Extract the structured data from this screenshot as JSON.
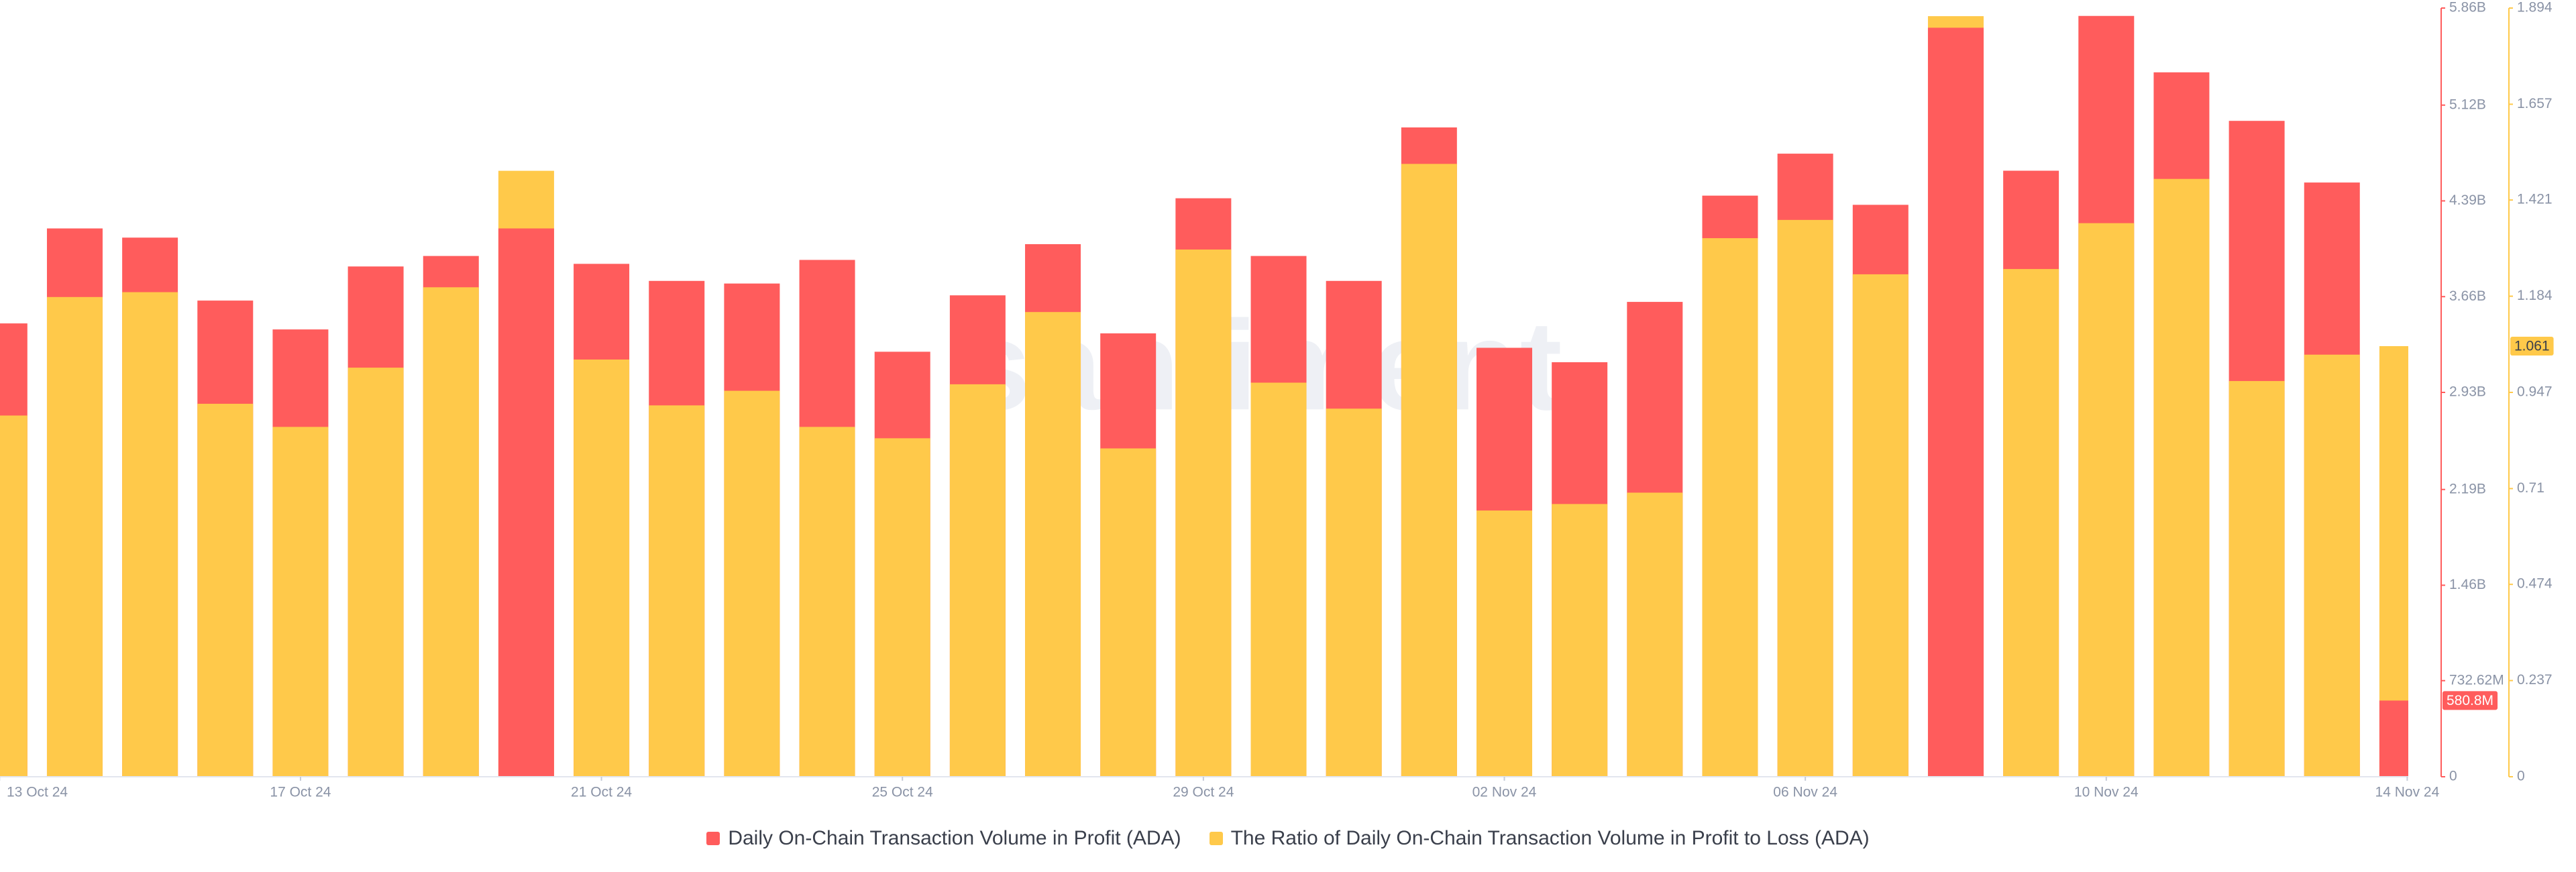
{
  "chart_data": {
    "type": "bar",
    "watermark": "santiment",
    "categories": [
      "13 Oct 24",
      null,
      null,
      null,
      "17 Oct 24",
      null,
      null,
      null,
      "21 Oct 24",
      null,
      null,
      null,
      "25 Oct 24",
      null,
      null,
      null,
      "29 Oct 24",
      null,
      null,
      null,
      "02 Nov 24",
      null,
      null,
      null,
      "06 Nov 24",
      null,
      null,
      null,
      "10 Nov 24",
      null,
      null,
      null,
      "14 Nov 24"
    ],
    "series": [
      {
        "name": "Daily On-Chain Transaction Volume in Profit (ADA)",
        "color": "#ff5c5c",
        "values": [
          3456000000,
          4180000000,
          4110000000,
          3630000000,
          3410000000,
          3890000000,
          3970000000,
          4180000000,
          3910000000,
          3780000000,
          3760000000,
          3940000000,
          3240000000,
          3670000000,
          4060000000,
          3380000000,
          4410000000,
          3970000000,
          3780000000,
          4950000000,
          3270000000,
          3160000000,
          3620000000,
          4430000000,
          4750000000,
          4360000000,
          5710000000,
          4620000000,
          5800000000,
          5370000000,
          5000000000,
          4530000000,
          580800000
        ],
        "value_labels": [
          null,
          null,
          null,
          null,
          null,
          null,
          null,
          null,
          null,
          null,
          null,
          null,
          null,
          null,
          null,
          null,
          null,
          null,
          null,
          null,
          null,
          null,
          null,
          null,
          null,
          null,
          null,
          null,
          null,
          null,
          null,
          null,
          "580.8M"
        ]
      },
      {
        "name": "The Ratio of Daily On-Chain Transaction Volume in Profit to Loss (ADA)",
        "color": "#ffc94a",
        "axis": "y2",
        "values": [
          0.89,
          1.182,
          1.194,
          0.919,
          0.862,
          1.008,
          1.206,
          1.493,
          1.028,
          0.915,
          0.951,
          0.862,
          0.834,
          0.967,
          1.145,
          0.809,
          1.299,
          0.971,
          0.907,
          1.51,
          0.656,
          0.672,
          0.7,
          1.327,
          1.372,
          1.238,
          1.874,
          1.251,
          1.364,
          1.473,
          0.975,
          1.04,
          1.061
        ]
      }
    ],
    "ylim": [
      0,
      5860000000
    ],
    "yticks": [
      0,
      {
        "value": 732620000,
        "label": "732.62M"
      },
      {
        "value": 1460000000,
        "label": "1.46B"
      },
      {
        "value": 2190000000,
        "label": "2.19B"
      },
      {
        "value": 2930000000,
        "label": "2.93B"
      },
      {
        "value": 3660000000,
        "label": "3.66B"
      },
      {
        "value": 4390000000,
        "label": "4.39B"
      },
      {
        "value": 5120000000,
        "label": "5.12B"
      },
      {
        "value": 5860000000,
        "label": "5.86B"
      }
    ],
    "y2lim": [
      0,
      1.894
    ],
    "y2ticks": [
      0,
      0.237,
      0.474,
      0.71,
      0.947,
      1.184,
      1.421,
      1.657,
      1.894
    ],
    "legend": "bottom"
  }
}
